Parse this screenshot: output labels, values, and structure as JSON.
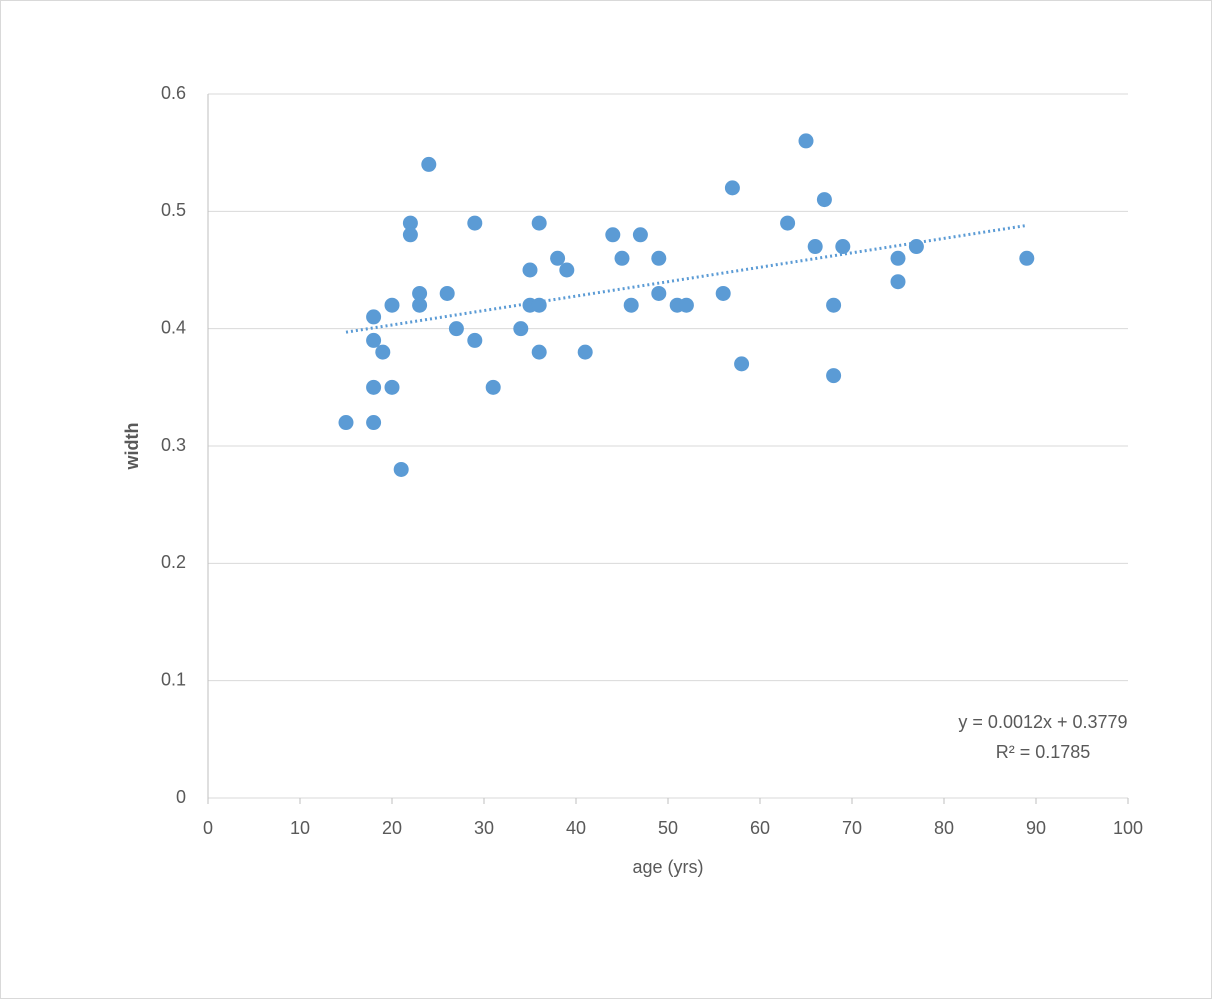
{
  "chart_data": {
    "type": "scatter",
    "x_label": "age (yrs)",
    "y_label": "width",
    "series": [
      {
        "name": "width",
        "color": "#5b9bd5",
        "x": [
          15,
          18,
          18,
          18,
          18,
          19,
          20,
          20,
          21,
          22,
          22,
          23,
          23,
          24,
          26,
          27,
          29,
          29,
          31,
          34,
          35,
          35,
          36,
          36,
          36,
          38,
          39,
          41,
          44,
          45,
          46,
          47,
          49,
          49,
          51,
          52,
          56,
          57,
          58,
          63,
          65,
          66,
          67,
          68,
          68,
          69,
          75,
          75,
          77,
          89
        ],
        "values": [
          0.32,
          0.41,
          0.39,
          0.35,
          0.32,
          0.38,
          0.42,
          0.35,
          0.28,
          0.49,
          0.48,
          0.43,
          0.42,
          0.54,
          0.43,
          0.4,
          0.49,
          0.39,
          0.35,
          0.4,
          0.45,
          0.42,
          0.49,
          0.42,
          0.38,
          0.46,
          0.45,
          0.38,
          0.48,
          0.46,
          0.42,
          0.48,
          0.46,
          0.43,
          0.42,
          0.42,
          0.43,
          0.52,
          0.37,
          0.49,
          0.56,
          0.47,
          0.51,
          0.42,
          0.36,
          0.47,
          0.46,
          0.44,
          0.47,
          0.46
        ]
      }
    ],
    "trendline": {
      "x": [
        15,
        89
      ],
      "values": [
        0.397,
        0.488
      ],
      "color": "#5b9bd5",
      "equation": "y = 0.0012x + 0.3779",
      "r_squared": "R² = 0.1785"
    },
    "xlim": [
      0,
      100
    ],
    "xticks": [
      0,
      10,
      20,
      30,
      40,
      50,
      60,
      70,
      80,
      90,
      100
    ],
    "ylim": [
      0,
      0.6
    ],
    "yticks": [
      0,
      0.1,
      0.2,
      0.3,
      0.4,
      0.5,
      0.6
    ],
    "grid": true
  }
}
